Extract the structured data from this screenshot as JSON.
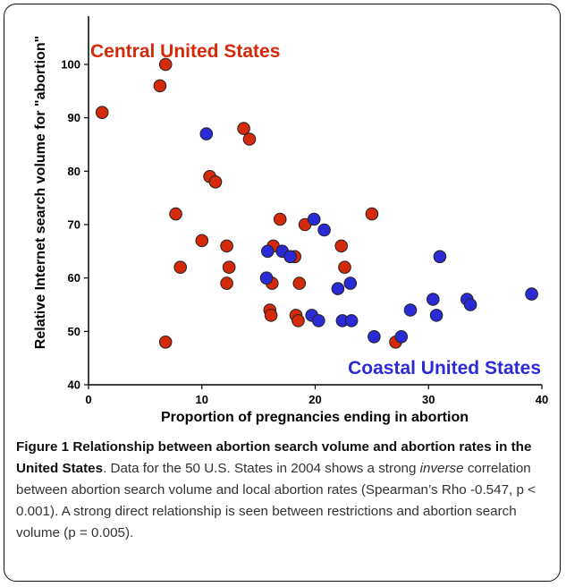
{
  "chart_data": {
    "type": "scatter",
    "xlabel": "Proportion of pregnancies ending in abortion",
    "ylabel": "Relative Internet search volume for \"abortion\"",
    "xlim": [
      0,
      40
    ],
    "ylim": [
      40,
      100
    ],
    "xticks": [
      "0",
      "10",
      "20",
      "30",
      "40"
    ],
    "yticks": [
      "40",
      "50",
      "60",
      "70",
      "80",
      "90",
      "100"
    ],
    "grid": false,
    "annotations": [
      "Central United States",
      "Coastal United States"
    ],
    "series": [
      {
        "color": "#d42a0a",
        "points": [
          [
            1.2,
            91
          ],
          [
            6.3,
            96
          ],
          [
            6.8,
            100
          ],
          [
            6.8,
            48
          ],
          [
            7.7,
            72
          ],
          [
            8.1,
            62
          ],
          [
            10.0,
            67
          ],
          [
            10.7,
            79
          ],
          [
            11.2,
            78
          ],
          [
            12.2,
            66
          ],
          [
            12.2,
            59
          ],
          [
            12.4,
            62
          ],
          [
            13.7,
            88
          ],
          [
            14.2,
            86
          ],
          [
            16.0,
            54
          ],
          [
            16.1,
            53
          ],
          [
            16.2,
            59
          ],
          [
            16.3,
            66
          ],
          [
            16.9,
            71
          ],
          [
            18.2,
            64
          ],
          [
            18.3,
            53
          ],
          [
            18.5,
            52
          ],
          [
            18.6,
            59
          ],
          [
            19.1,
            70
          ],
          [
            22.3,
            66
          ],
          [
            22.6,
            62
          ],
          [
            25.0,
            72
          ],
          [
            27.1,
            48
          ]
        ]
      },
      {
        "color": "#2b2bd6",
        "points": [
          [
            10.4,
            87
          ],
          [
            15.7,
            60
          ],
          [
            15.8,
            65
          ],
          [
            17.1,
            65
          ],
          [
            17.8,
            64
          ],
          [
            19.7,
            53
          ],
          [
            19.9,
            71
          ],
          [
            20.3,
            52
          ],
          [
            20.8,
            69
          ],
          [
            22.0,
            58
          ],
          [
            22.4,
            52
          ],
          [
            23.1,
            59
          ],
          [
            23.2,
            52
          ],
          [
            25.2,
            49
          ],
          [
            27.6,
            49
          ],
          [
            28.4,
            54
          ],
          [
            30.4,
            56
          ],
          [
            30.7,
            53
          ],
          [
            31.0,
            64
          ],
          [
            33.4,
            56
          ],
          [
            33.7,
            55
          ],
          [
            39.1,
            57
          ]
        ]
      }
    ]
  },
  "caption": {
    "figure_label": "Figure 1",
    "title": "Relationship between abortion search volume and abortion rates in the United States",
    "text_before_italic": ". Data for the 50 U.S. States in 2004 shows a strong ",
    "italic": "inverse",
    "text_after_italic": " correlation between abortion search volume and local abortion rates (Spearman’s Rho -0.547, p < 0.001). A strong direct relationship is seen between restrictions and abortion search volume (p = 0.005)."
  }
}
